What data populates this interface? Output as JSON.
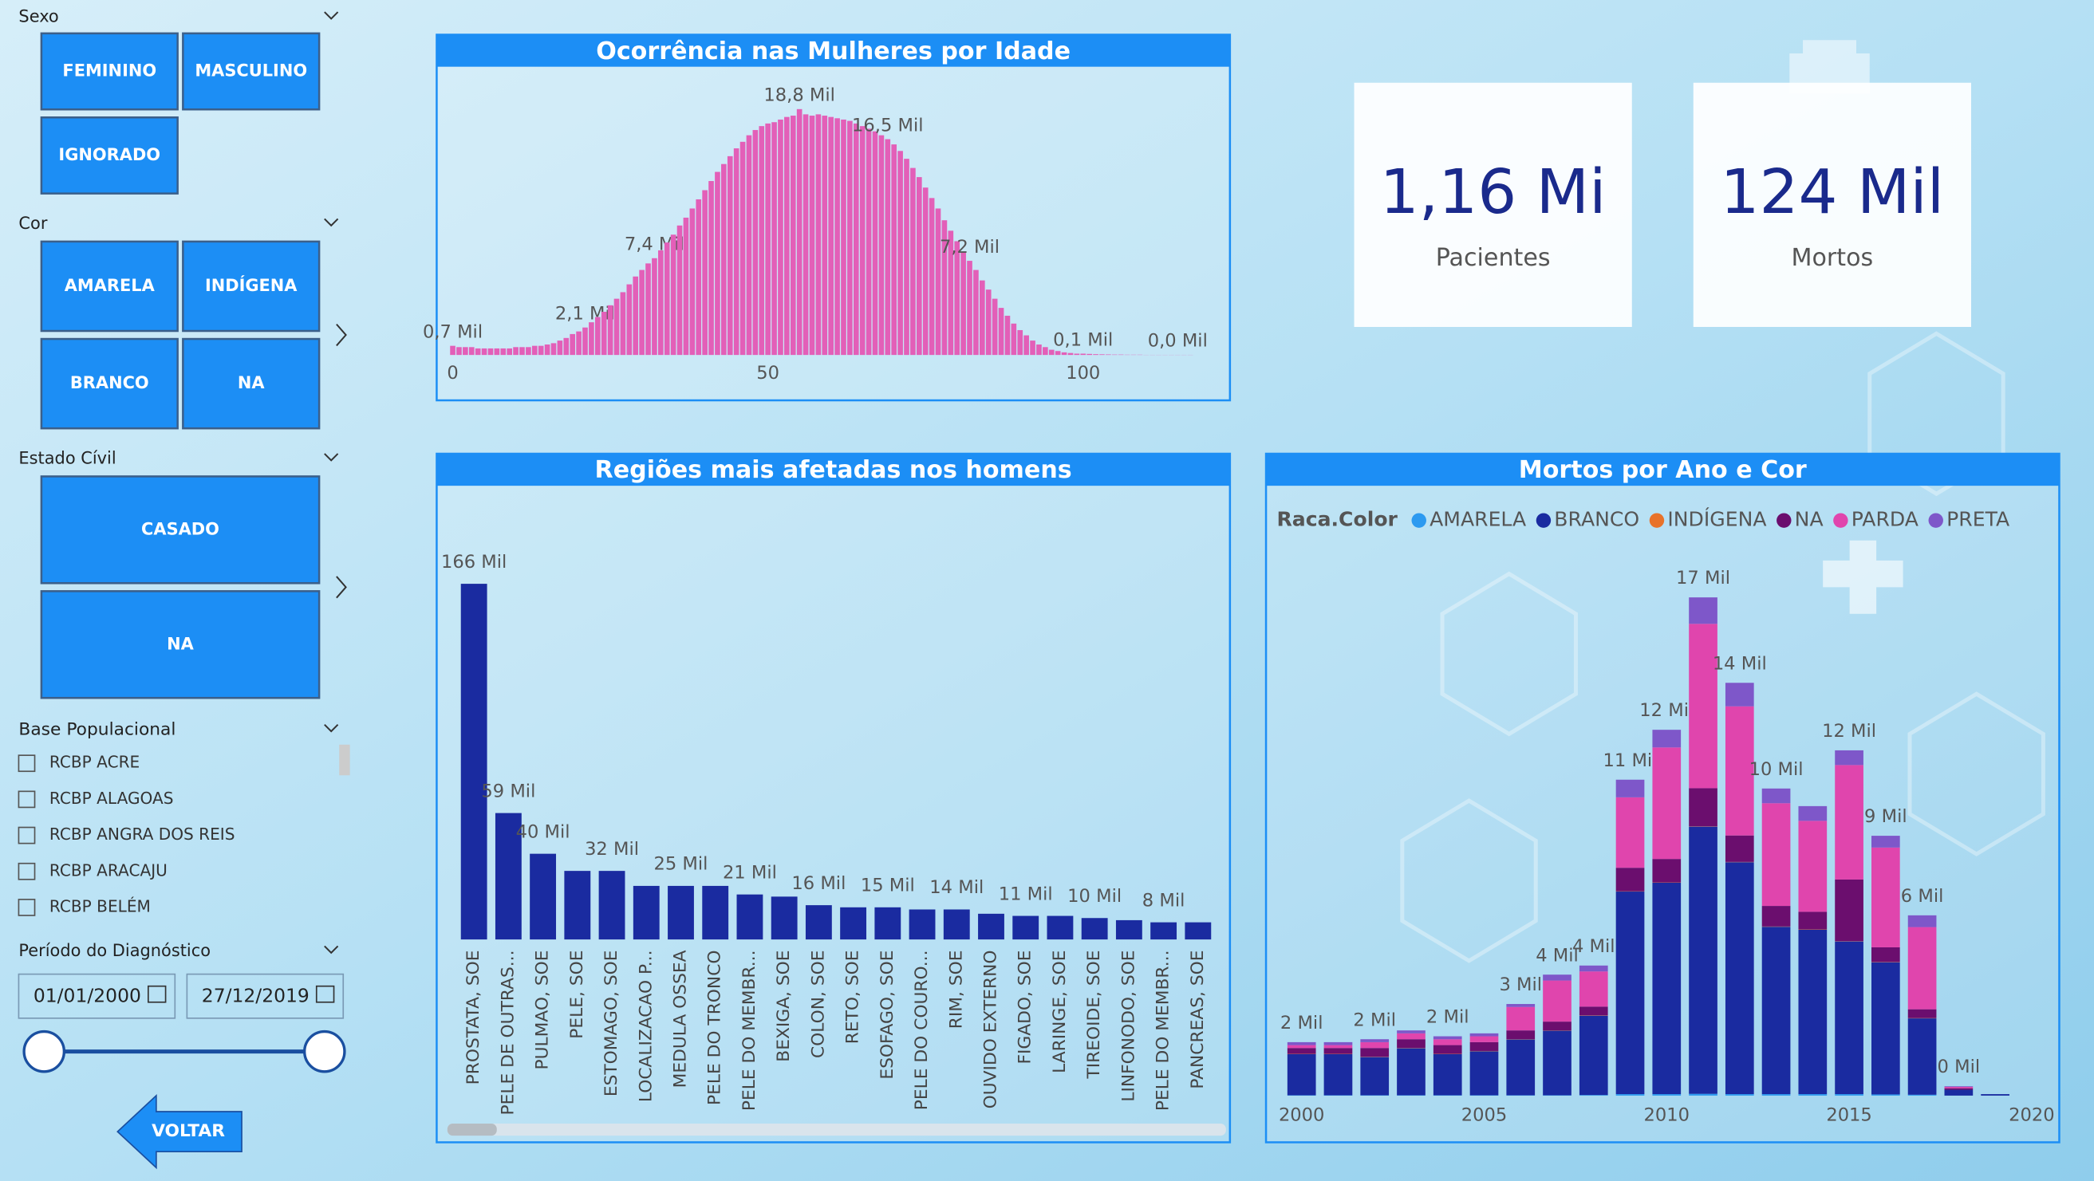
{
  "filters": {
    "sexo": {
      "title": "Sexo",
      "options": [
        "FEMININO",
        "MASCULINO",
        "IGNORADO"
      ]
    },
    "cor": {
      "title": "Cor",
      "options": [
        "AMARELA",
        "INDÍGENA",
        "BRANCO",
        "NA"
      ]
    },
    "estado_civil": {
      "title": "Estado Cívil",
      "options": [
        "CASADO",
        "NA"
      ]
    },
    "base_populacional": {
      "title": "Base Populacional",
      "items": [
        "RCBP ACRE",
        "RCBP ALAGOAS",
        "RCBP ANGRA DOS REIS",
        "RCBP ARACAJU",
        "RCBP BELÉM"
      ]
    },
    "periodo": {
      "title": "Período do Diagnóstico",
      "start": "01/01/2000",
      "end": "27/12/2019"
    }
  },
  "back_button": "VOLTAR",
  "cards": [
    {
      "value": "1,16 Mi",
      "label": "Pacientes"
    },
    {
      "value": "124 Mil",
      "label": "Mortos"
    }
  ],
  "chart_data": [
    {
      "type": "bar",
      "title": "Ocorrência nas Mulheres por Idade",
      "color": "#e35fb8",
      "x": [
        0,
        1,
        2,
        3,
        4,
        5,
        6,
        7,
        8,
        9,
        10,
        11,
        12,
        13,
        14,
        15,
        16,
        17,
        18,
        19,
        20,
        21,
        22,
        23,
        24,
        25,
        26,
        27,
        28,
        29,
        30,
        31,
        32,
        33,
        34,
        35,
        36,
        37,
        38,
        39,
        40,
        41,
        42,
        43,
        44,
        45,
        46,
        47,
        48,
        49,
        50,
        51,
        52,
        53,
        54,
        55,
        56,
        57,
        58,
        59,
        60,
        61,
        62,
        63,
        64,
        65,
        66,
        67,
        68,
        69,
        70,
        71,
        72,
        73,
        74,
        75,
        76,
        77,
        78,
        79,
        80,
        81,
        82,
        83,
        84,
        85,
        86,
        87,
        88,
        89,
        90,
        91,
        92,
        93,
        94,
        95,
        96,
        97,
        98,
        99,
        100,
        101,
        102,
        103,
        104,
        105,
        106,
        107,
        108,
        109,
        110,
        111,
        112,
        113,
        114,
        115,
        116,
        117
      ],
      "values": [
        0.7,
        0.6,
        0.6,
        0.6,
        0.5,
        0.5,
        0.5,
        0.5,
        0.5,
        0.5,
        0.6,
        0.6,
        0.6,
        0.7,
        0.7,
        0.8,
        0.9,
        1.1,
        1.3,
        1.6,
        1.8,
        2.1,
        2.5,
        2.9,
        3.3,
        3.8,
        4.3,
        4.8,
        5.4,
        6.0,
        6.5,
        7.0,
        7.4,
        8.0,
        8.6,
        9.2,
        9.9,
        10.5,
        11.2,
        11.9,
        12.6,
        13.3,
        14.0,
        14.6,
        15.2,
        15.8,
        16.3,
        16.8,
        17.2,
        17.5,
        17.7,
        17.8,
        18.0,
        18.2,
        18.3,
        18.8,
        18.4,
        18.3,
        18.4,
        18.3,
        18.2,
        18.1,
        18.0,
        17.9,
        17.7,
        17.5,
        17.3,
        17.1,
        16.8,
        16.5,
        16.1,
        15.6,
        15.0,
        14.3,
        13.6,
        12.8,
        12.0,
        11.2,
        10.3,
        9.5,
        8.7,
        7.9,
        7.2,
        6.5,
        5.7,
        5.0,
        4.3,
        3.6,
        3.0,
        2.4,
        1.9,
        1.5,
        1.1,
        0.8,
        0.6,
        0.4,
        0.3,
        0.2,
        0.15,
        0.1,
        0.1,
        0.08,
        0.06,
        0.05,
        0.04,
        0.03,
        0.03,
        0.02,
        0.02,
        0.02,
        0.01,
        0.01,
        0.01,
        0.01,
        0.01,
        0.01,
        0.01,
        0.01
      ],
      "value_labels": [
        "0,7 Mil",
        null,
        null,
        null,
        null,
        null,
        null,
        null,
        null,
        null,
        null,
        null,
        null,
        null,
        null,
        null,
        null,
        null,
        null,
        null,
        null,
        "2,1 Mil",
        null,
        null,
        null,
        null,
        null,
        null,
        null,
        null,
        null,
        null,
        "7,4 Mil",
        null,
        null,
        null,
        null,
        null,
        null,
        null,
        null,
        null,
        null,
        null,
        null,
        null,
        null,
        null,
        null,
        null,
        null,
        null,
        null,
        null,
        null,
        "18,8 Mil",
        null,
        null,
        null,
        null,
        null,
        null,
        null,
        null,
        null,
        null,
        null,
        null,
        null,
        "16,5 Mil",
        null,
        null,
        null,
        null,
        null,
        null,
        null,
        null,
        null,
        null,
        null,
        null,
        "7,2 Mil",
        null,
        null,
        null,
        null,
        null,
        null,
        null,
        null,
        null,
        null,
        null,
        null,
        null,
        null,
        null,
        null,
        null,
        "0,1 Mil",
        null,
        null,
        null,
        null,
        null,
        null,
        null,
        null,
        null,
        null,
        null,
        null,
        null,
        null,
        "0,0 Mil",
        null,
        null
      ],
      "xlim": [
        -1,
        118
      ],
      "xticks": [
        0,
        50,
        100
      ],
      "ylim": [
        0,
        20
      ]
    },
    {
      "type": "bar",
      "title": "Regiões mais afetadas nos homens",
      "color": "#1a2ba0",
      "categories": [
        "PROSTATA, SOE",
        "PELE DE OUTRAS...",
        "PULMAO, SOE",
        "PELE, SOE",
        "ESTOMAGO, SOE",
        "LOCALIZACAO P...",
        "MEDULA OSSEA",
        "PELE DO TRONCO",
        "PELE DO MEMBR...",
        "BEXIGA, SOE",
        "COLON, SOE",
        "RETO, SOE",
        "ESOFAGO, SOE",
        "PELE DO COURO...",
        "RIM, SOE",
        "OUVIDO EXTERNO",
        "FIGADO, SOE",
        "LARINGE, SOE",
        "TIREOIDE, SOE",
        "LINFONODO, SOE",
        "PELE DO MEMBR...",
        "PANCREAS, SOE"
      ],
      "values": [
        166,
        59,
        40,
        32,
        32,
        25,
        25,
        25,
        21,
        20,
        16,
        15,
        15,
        14,
        14,
        12,
        11,
        11,
        10,
        9,
        8,
        8
      ],
      "value_labels": [
        "166 Mil",
        "59 Mil",
        "40 Mil",
        null,
        "32 Mil",
        null,
        "25 Mil",
        null,
        "21 Mil",
        null,
        "16 Mil",
        null,
        "15 Mil",
        null,
        "14 Mil",
        null,
        "11 Mil",
        null,
        "10 Mil",
        null,
        "8 Mil",
        null
      ],
      "ylim": [
        0,
        180
      ]
    },
    {
      "type": "stacked-bar",
      "title": "Mortos por Ano e Cor",
      "legend_title": "Raca.Color",
      "x": [
        2000,
        2001,
        2002,
        2003,
        2004,
        2005,
        2006,
        2007,
        2008,
        2009,
        2010,
        2011,
        2012,
        2013,
        2014,
        2015,
        2016,
        2017,
        2018,
        2019
      ],
      "series": [
        {
          "name": "AMARELA",
          "color": "#2c9af0",
          "values": [
            0.01,
            0.01,
            0.01,
            0.01,
            0.01,
            0.01,
            0.01,
            0.01,
            0.02,
            0.05,
            0.05,
            0.06,
            0.05,
            0.05,
            0.05,
            0.05,
            0.04,
            0.03,
            0.0,
            0.0
          ]
        },
        {
          "name": "BRANCO",
          "color": "#1a2ba0",
          "values": [
            1.4,
            1.4,
            1.3,
            1.6,
            1.4,
            1.5,
            1.9,
            2.2,
            2.7,
            6.9,
            7.2,
            9.1,
            7.9,
            5.7,
            5.6,
            5.2,
            4.5,
            2.6,
            0.2,
            0.05
          ]
        },
        {
          "name": "INDÍGENA",
          "color": "#e8722a",
          "values": [
            0.01,
            0.01,
            0.01,
            0.01,
            0.01,
            0.01,
            0.01,
            0.01,
            0.01,
            0.01,
            0.01,
            0.01,
            0.01,
            0.01,
            0.01,
            0.01,
            0.01,
            0.01,
            0.0,
            0.0
          ]
        },
        {
          "name": "NA",
          "color": "#6b0e6e",
          "values": [
            0.2,
            0.2,
            0.3,
            0.3,
            0.3,
            0.3,
            0.3,
            0.3,
            0.3,
            0.8,
            0.8,
            1.3,
            0.9,
            0.7,
            0.6,
            2.1,
            0.5,
            0.3,
            0.05,
            0.0
          ]
        },
        {
          "name": "PARDA",
          "color": "#e045ad",
          "values": [
            0.1,
            0.1,
            0.2,
            0.2,
            0.2,
            0.2,
            0.8,
            1.4,
            1.2,
            2.4,
            3.8,
            5.6,
            4.4,
            3.5,
            3.1,
            3.9,
            3.4,
            2.8,
            0.05,
            0.0
          ]
        },
        {
          "name": "PRETA",
          "color": "#7e57c9",
          "values": [
            0.1,
            0.1,
            0.1,
            0.1,
            0.1,
            0.1,
            0.1,
            0.2,
            0.2,
            0.6,
            0.6,
            0.9,
            0.8,
            0.5,
            0.5,
            0.5,
            0.4,
            0.4,
            0.02,
            0.0
          ]
        }
      ],
      "total_labels": [
        "2 Mil",
        null,
        "2 Mil",
        null,
        "2 Mil",
        null,
        "3 Mil",
        "4 Mil",
        "4 Mil",
        "11 Mil",
        "12 Mil",
        "17 Mil",
        "14 Mil",
        "10 Mil",
        null,
        "12 Mil",
        "9 Mil",
        "6 Mil",
        "0 Mil",
        null
      ],
      "xlim": [
        1999.5,
        2020.5
      ],
      "xticks": [
        2000,
        2005,
        2010,
        2015,
        2020
      ],
      "ylim": [
        0,
        18
      ]
    }
  ]
}
